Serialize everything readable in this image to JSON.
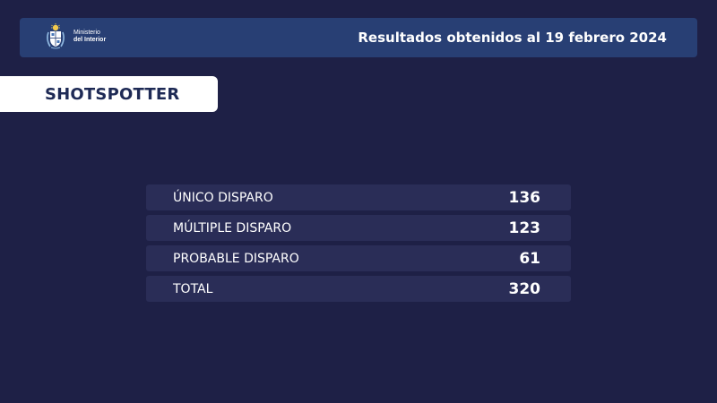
{
  "header": {
    "logo": {
      "line1": "Ministerio",
      "line2": "del Interior"
    },
    "title": "Resultados obtenidos al 19 febrero 2024"
  },
  "section": {
    "title": "SHOTSPOTTER"
  },
  "table": {
    "rows": [
      {
        "label": "ÚNICO DISPARO",
        "value": "136"
      },
      {
        "label": "MÚLTIPLE DISPARO",
        "value": "123"
      },
      {
        "label": "PROBABLE DISPARO",
        "value": "61"
      },
      {
        "label": "TOTAL",
        "value": "320"
      }
    ]
  },
  "colors": {
    "background": "#1e2046",
    "header_bar": "#283f74",
    "row_bg": "#2a2d57",
    "label_bg": "#ffffff",
    "label_text": "#1e2a55"
  },
  "icons": {
    "logo": "coat-of-arms-icon"
  }
}
